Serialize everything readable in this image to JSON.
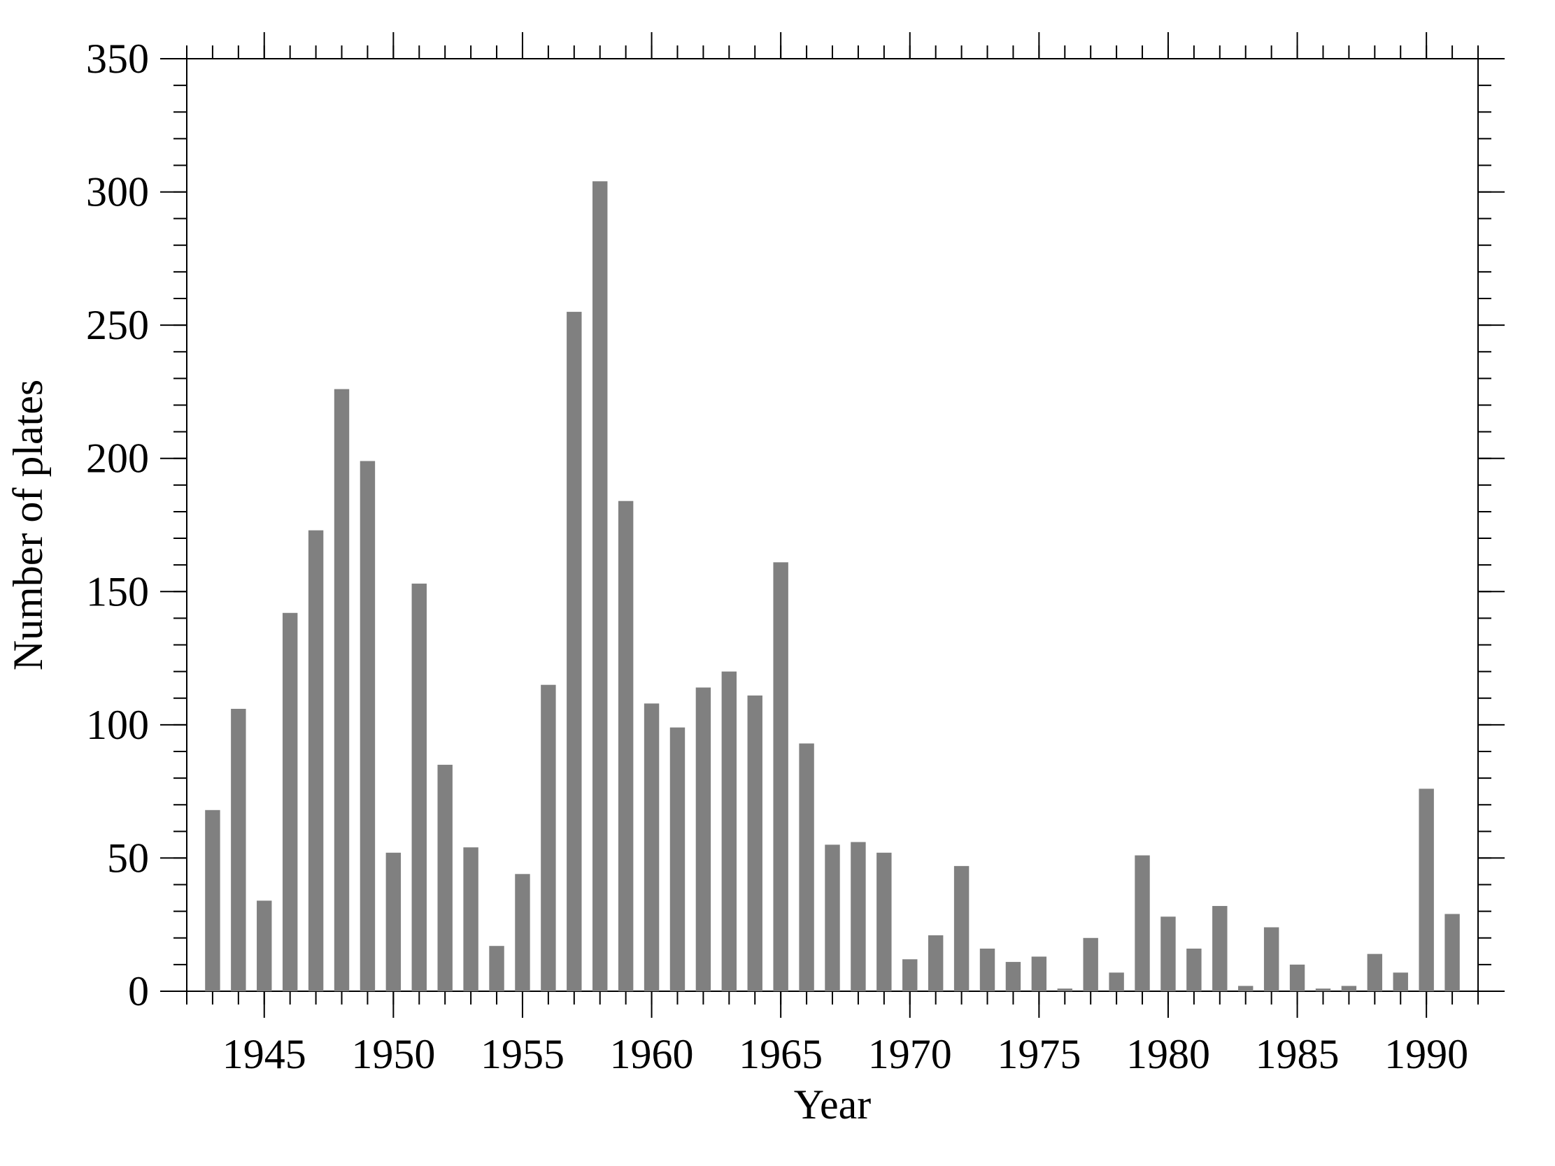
{
  "chart_data": {
    "type": "bar",
    "xlabel": "Year",
    "ylabel": "Number of plates",
    "x": [
      1943,
      1944,
      1945,
      1946,
      1947,
      1948,
      1949,
      1950,
      1951,
      1952,
      1953,
      1954,
      1955,
      1956,
      1957,
      1958,
      1959,
      1960,
      1961,
      1962,
      1963,
      1964,
      1965,
      1966,
      1967,
      1968,
      1969,
      1970,
      1971,
      1972,
      1973,
      1974,
      1975,
      1976,
      1977,
      1978,
      1979,
      1980,
      1981,
      1982,
      1983,
      1984,
      1985,
      1986,
      1987,
      1988,
      1989,
      1990,
      1991
    ],
    "values": [
      68,
      106,
      34,
      142,
      173,
      226,
      199,
      52,
      153,
      85,
      54,
      17,
      44,
      115,
      255,
      304,
      184,
      108,
      99,
      114,
      120,
      111,
      161,
      93,
      55,
      56,
      52,
      12,
      21,
      47,
      16,
      11,
      13,
      1,
      20,
      7,
      51,
      28,
      16,
      32,
      2,
      24,
      10,
      1,
      2,
      14,
      7,
      76,
      29
    ],
    "color": "#808080",
    "xlim": [
      1942,
      1992
    ],
    "xticks": [
      1945,
      1950,
      1955,
      1960,
      1965,
      1970,
      1975,
      1980,
      1985,
      1990
    ],
    "ylim": [
      0,
      350
    ],
    "yticks": [
      0,
      50,
      100,
      150,
      200,
      250,
      300,
      350
    ]
  }
}
